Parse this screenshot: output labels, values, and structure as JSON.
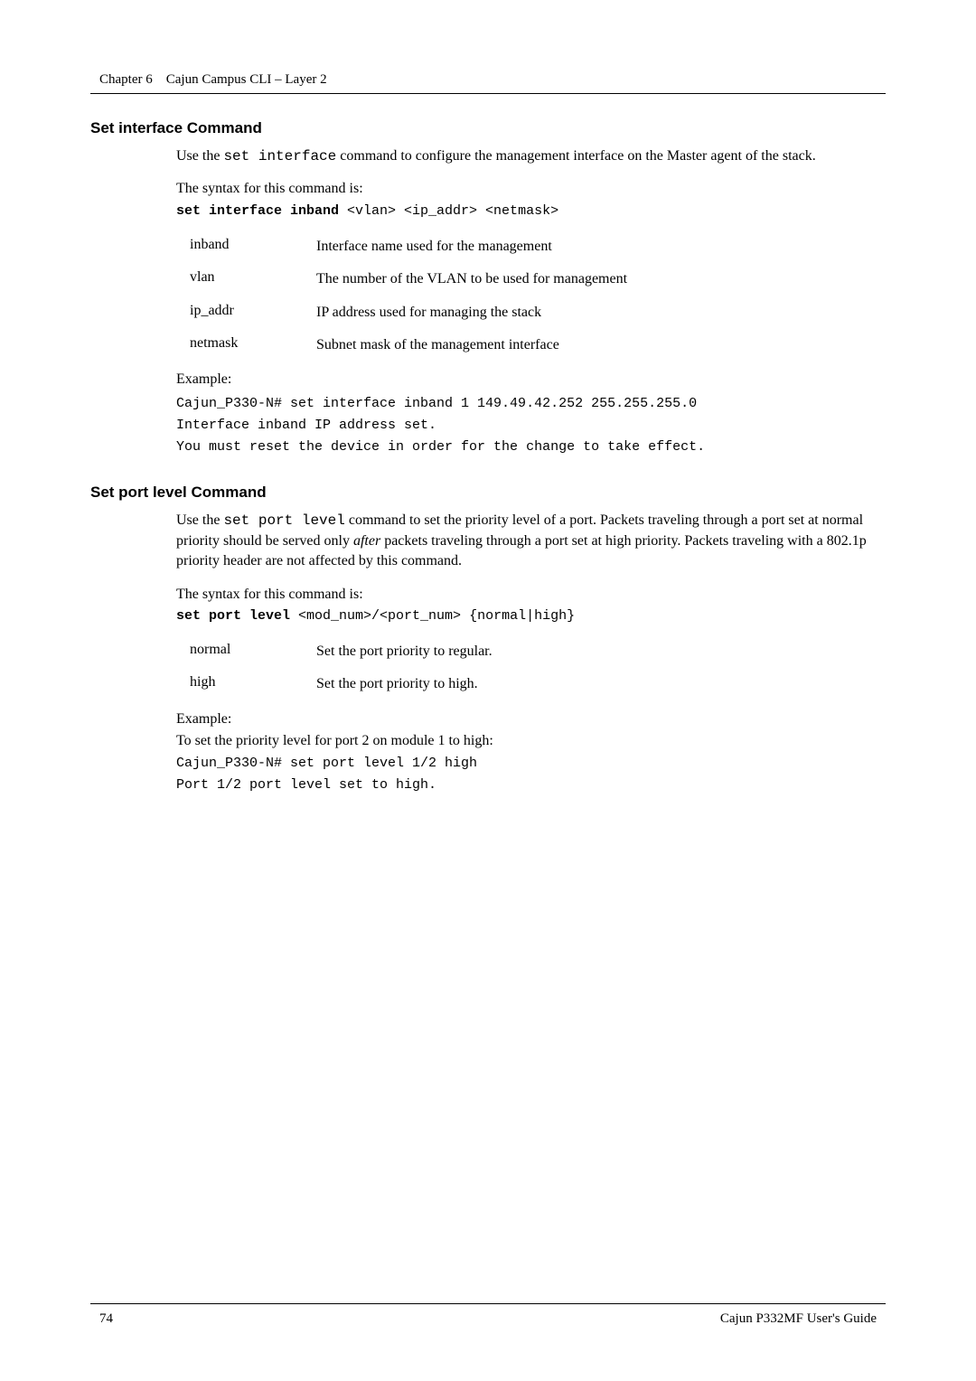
{
  "header": {
    "chapter_label": "Chapter 6",
    "chapter_title": "Cajun Campus CLI – Layer 2"
  },
  "section1": {
    "title": "Set interface Command",
    "intro_part1": "Use the ",
    "intro_code": "set interface",
    "intro_part2": " command to configure the management interface on the Master agent of the stack.",
    "syntax_intro": "The syntax for this command is:",
    "syntax_bold": "set interface inband",
    "syntax_rest": " <vlan> <ip_addr> <netmask>",
    "params": [
      {
        "name": "inband",
        "desc": "Interface name used for the management"
      },
      {
        "name": "vlan",
        "desc": "The number of the VLAN to be used for management"
      },
      {
        "name": "ip_addr",
        "desc": "IP address used for managing the stack"
      },
      {
        "name": "netmask",
        "desc": "Subnet mask of the management interface"
      }
    ],
    "example_label": "Example:",
    "example_lines": [
      "Cajun_P330-N# set interface inband 1 149.49.42.252 255.255.255.0",
      "Interface inband IP address set.",
      "You must reset the device in order for the change to take effect."
    ]
  },
  "section2": {
    "title": "Set port level Command",
    "intro_part1": "Use the ",
    "intro_code": "set port level",
    "intro_part2": " command to set the priority level of a port. Packets traveling through a port set at normal priority should be served only ",
    "intro_italic": "after",
    "intro_part3": " packets traveling through a port set at high priority. Packets traveling with a 802.1p priority header are not affected by this command.",
    "syntax_intro": "The syntax for this command is:",
    "syntax_bold": "set port level",
    "syntax_rest": " <mod_num>/<port_num> {normal|high}",
    "params": [
      {
        "name": "normal",
        "desc": "Set the port priority to regular."
      },
      {
        "name": "high",
        "desc": "Set the port priority to high."
      }
    ],
    "example_label": "Example:",
    "example_text": "To set the priority level for port 2 on module 1 to high:",
    "example_lines": [
      "Cajun_P330-N# set port level 1/2 high",
      "Port 1/2 port level set to high."
    ]
  },
  "footer": {
    "page_number": "74",
    "guide_title": "Cajun P332MF User's Guide"
  }
}
